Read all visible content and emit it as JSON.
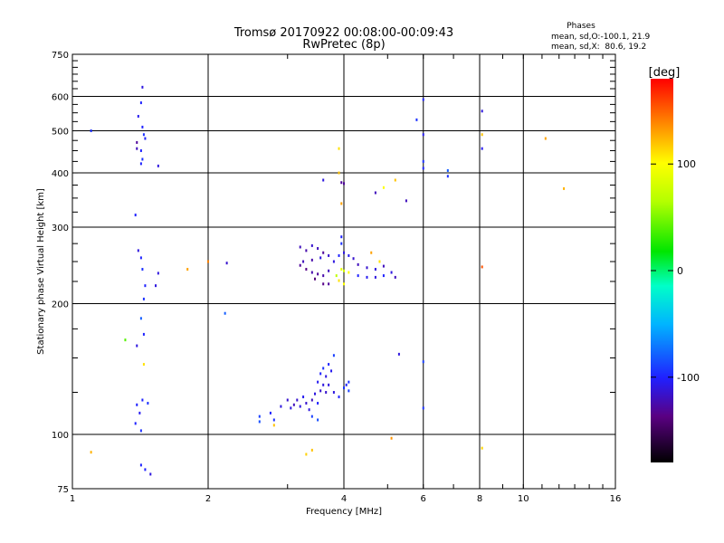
{
  "header": {
    "title_line1": "Tromsø 20170922 00:08:00-00:09:43",
    "title_line2": "RwPretec (8p)",
    "phases_title": "Phases",
    "phases_o": "mean, sd,O:-100.1, 21.9",
    "phases_x": "mean, sd,X:  80.6, 19.2"
  },
  "colorbar": {
    "label": "[deg]",
    "min": -180,
    "max": 180,
    "ticks": [
      100,
      0,
      -100
    ],
    "tick_labels": [
      "100",
      "0",
      "-100"
    ]
  },
  "chart_data": {
    "type": "scatter",
    "xlabel": "Frequency [MHz]",
    "ylabel": "Stationary phase Virtual Height [km]",
    "x_scale": "log",
    "y_scale": "log",
    "xlim": [
      1,
      16
    ],
    "ylim": [
      75,
      750
    ],
    "grid": true,
    "x_ticks": [
      1,
      2,
      4,
      6,
      8,
      10,
      16
    ],
    "x_tick_labels": [
      "1",
      "2",
      "4",
      "6",
      "8",
      "10",
      "16"
    ],
    "y_ticks": [
      75,
      100,
      200,
      300,
      400,
      500,
      600,
      750
    ],
    "y_tick_labels": [
      "75",
      "100",
      "200",
      "300",
      "400",
      "500",
      "600",
      "750"
    ],
    "color_value": "phase [deg]",
    "points": [
      {
        "x": 1.43,
        "y": 630,
        "c": -110
      },
      {
        "x": 1.42,
        "y": 580,
        "c": -100
      },
      {
        "x": 1.4,
        "y": 540,
        "c": -105
      },
      {
        "x": 1.43,
        "y": 510,
        "c": -100
      },
      {
        "x": 1.44,
        "y": 490,
        "c": -95
      },
      {
        "x": 1.45,
        "y": 480,
        "c": -100
      },
      {
        "x": 1.39,
        "y": 470,
        "c": -130
      },
      {
        "x": 1.39,
        "y": 455,
        "c": -120
      },
      {
        "x": 1.42,
        "y": 450,
        "c": -100
      },
      {
        "x": 1.43,
        "y": 430,
        "c": -95
      },
      {
        "x": 1.42,
        "y": 420,
        "c": -100
      },
      {
        "x": 1.55,
        "y": 415,
        "c": -110
      },
      {
        "x": 1.1,
        "y": 500,
        "c": -95
      },
      {
        "x": 1.38,
        "y": 320,
        "c": -100
      },
      {
        "x": 1.4,
        "y": 265,
        "c": -110
      },
      {
        "x": 1.42,
        "y": 255,
        "c": -100
      },
      {
        "x": 1.43,
        "y": 240,
        "c": -95
      },
      {
        "x": 1.55,
        "y": 235,
        "c": -110
      },
      {
        "x": 1.45,
        "y": 220,
        "c": -100
      },
      {
        "x": 1.53,
        "y": 220,
        "c": -110
      },
      {
        "x": 1.44,
        "y": 205,
        "c": -95
      },
      {
        "x": 1.42,
        "y": 185,
        "c": -80
      },
      {
        "x": 1.44,
        "y": 170,
        "c": -100
      },
      {
        "x": 1.31,
        "y": 165,
        "c": 40
      },
      {
        "x": 1.39,
        "y": 160,
        "c": -110
      },
      {
        "x": 1.44,
        "y": 145,
        "c": 110
      },
      {
        "x": 1.43,
        "y": 120,
        "c": -100
      },
      {
        "x": 1.47,
        "y": 118,
        "c": -95
      },
      {
        "x": 1.39,
        "y": 117,
        "c": -100
      },
      {
        "x": 1.41,
        "y": 112,
        "c": -105
      },
      {
        "x": 1.38,
        "y": 106,
        "c": -100
      },
      {
        "x": 1.42,
        "y": 102,
        "c": -95
      },
      {
        "x": 1.42,
        "y": 85,
        "c": -100
      },
      {
        "x": 1.45,
        "y": 83,
        "c": -100
      },
      {
        "x": 1.49,
        "y": 81,
        "c": -110
      },
      {
        "x": 1.1,
        "y": 91,
        "c": 125
      },
      {
        "x": 1.8,
        "y": 240,
        "c": 130
      },
      {
        "x": 2.0,
        "y": 250,
        "c": 140
      },
      {
        "x": 2.2,
        "y": 248,
        "c": -115
      },
      {
        "x": 2.18,
        "y": 190,
        "c": -80
      },
      {
        "x": 3.2,
        "y": 270,
        "c": -120
      },
      {
        "x": 3.3,
        "y": 265,
        "c": -125
      },
      {
        "x": 3.4,
        "y": 272,
        "c": -115
      },
      {
        "x": 3.5,
        "y": 268,
        "c": -120
      },
      {
        "x": 3.6,
        "y": 262,
        "c": -130
      },
      {
        "x": 3.7,
        "y": 258,
        "c": -115
      },
      {
        "x": 3.55,
        "y": 255,
        "c": -110
      },
      {
        "x": 3.4,
        "y": 252,
        "c": -125
      },
      {
        "x": 3.25,
        "y": 250,
        "c": -120
      },
      {
        "x": 3.2,
        "y": 245,
        "c": -130
      },
      {
        "x": 3.3,
        "y": 240,
        "c": -135
      },
      {
        "x": 3.4,
        "y": 236,
        "c": -125
      },
      {
        "x": 3.5,
        "y": 234,
        "c": -130
      },
      {
        "x": 3.6,
        "y": 232,
        "c": -125
      },
      {
        "x": 3.7,
        "y": 238,
        "c": -120
      },
      {
        "x": 3.45,
        "y": 228,
        "c": -140
      },
      {
        "x": 3.6,
        "y": 222,
        "c": -135
      },
      {
        "x": 3.7,
        "y": 222,
        "c": -130
      },
      {
        "x": 3.85,
        "y": 232,
        "c": 70
      },
      {
        "x": 3.95,
        "y": 240,
        "c": 90
      },
      {
        "x": 4.0,
        "y": 238,
        "c": 80
      },
      {
        "x": 4.1,
        "y": 236,
        "c": 100
      },
      {
        "x": 3.9,
        "y": 226,
        "c": 110
      },
      {
        "x": 4.0,
        "y": 222,
        "c": 100
      },
      {
        "x": 3.8,
        "y": 250,
        "c": -110
      },
      {
        "x": 3.9,
        "y": 258,
        "c": -100
      },
      {
        "x": 4.0,
        "y": 262,
        "c": -110
      },
      {
        "x": 4.1,
        "y": 258,
        "c": -105
      },
      {
        "x": 4.2,
        "y": 254,
        "c": -115
      },
      {
        "x": 3.95,
        "y": 285,
        "c": -100
      },
      {
        "x": 3.95,
        "y": 275,
        "c": -95
      },
      {
        "x": 4.3,
        "y": 232,
        "c": -100
      },
      {
        "x": 4.5,
        "y": 230,
        "c": -105
      },
      {
        "x": 4.7,
        "y": 230,
        "c": -110
      },
      {
        "x": 4.9,
        "y": 232,
        "c": -100
      },
      {
        "x": 5.1,
        "y": 236,
        "c": -110
      },
      {
        "x": 5.2,
        "y": 230,
        "c": -120
      },
      {
        "x": 4.3,
        "y": 246,
        "c": -120
      },
      {
        "x": 4.5,
        "y": 242,
        "c": -115
      },
      {
        "x": 4.7,
        "y": 240,
        "c": -110
      },
      {
        "x": 4.9,
        "y": 244,
        "c": -120
      },
      {
        "x": 4.8,
        "y": 250,
        "c": 110
      },
      {
        "x": 4.6,
        "y": 262,
        "c": 130
      },
      {
        "x": 3.9,
        "y": 455,
        "c": 110
      },
      {
        "x": 3.9,
        "y": 400,
        "c": 120
      },
      {
        "x": 3.95,
        "y": 380,
        "c": -130
      },
      {
        "x": 4.0,
        "y": 378,
        "c": -130
      },
      {
        "x": 3.6,
        "y": 385,
        "c": -110
      },
      {
        "x": 3.95,
        "y": 340,
        "c": 130
      },
      {
        "x": 4.7,
        "y": 360,
        "c": -120
      },
      {
        "x": 4.9,
        "y": 370,
        "c": 100
      },
      {
        "x": 5.2,
        "y": 385,
        "c": 120
      },
      {
        "x": 5.5,
        "y": 345,
        "c": -120
      },
      {
        "x": 6.0,
        "y": 590,
        "c": -100
      },
      {
        "x": 5.8,
        "y": 530,
        "c": -95
      },
      {
        "x": 6.0,
        "y": 490,
        "c": -105
      },
      {
        "x": 6.0,
        "y": 425,
        "c": -95
      },
      {
        "x": 6.0,
        "y": 410,
        "c": -100
      },
      {
        "x": 6.8,
        "y": 405,
        "c": -80
      },
      {
        "x": 6.8,
        "y": 393,
        "c": -95
      },
      {
        "x": 8.1,
        "y": 555,
        "c": -110
      },
      {
        "x": 8.1,
        "y": 490,
        "c": 120
      },
      {
        "x": 8.1,
        "y": 455,
        "c": -105
      },
      {
        "x": 11.2,
        "y": 480,
        "c": 130
      },
      {
        "x": 12.3,
        "y": 368,
        "c": 125
      },
      {
        "x": 8.1,
        "y": 243,
        "c": 155
      },
      {
        "x": 5.3,
        "y": 153,
        "c": -110
      },
      {
        "x": 6.0,
        "y": 147,
        "c": -90
      },
      {
        "x": 6.0,
        "y": 115,
        "c": -95
      },
      {
        "x": 5.1,
        "y": 98,
        "c": 135
      },
      {
        "x": 3.4,
        "y": 92,
        "c": 120
      },
      {
        "x": 3.3,
        "y": 90,
        "c": 115
      },
      {
        "x": 8.1,
        "y": 93,
        "c": 115
      },
      {
        "x": 2.6,
        "y": 110,
        "c": -90
      },
      {
        "x": 2.6,
        "y": 107,
        "c": -85
      },
      {
        "x": 2.75,
        "y": 112,
        "c": -100
      },
      {
        "x": 2.8,
        "y": 108,
        "c": -95
      },
      {
        "x": 2.8,
        "y": 105,
        "c": 120
      },
      {
        "x": 2.9,
        "y": 116,
        "c": -110
      },
      {
        "x": 3.0,
        "y": 120,
        "c": -115
      },
      {
        "x": 3.05,
        "y": 115,
        "c": -110
      },
      {
        "x": 3.1,
        "y": 117,
        "c": -120
      },
      {
        "x": 3.15,
        "y": 120,
        "c": -115
      },
      {
        "x": 3.2,
        "y": 116,
        "c": -110
      },
      {
        "x": 3.25,
        "y": 122,
        "c": -105
      },
      {
        "x": 3.3,
        "y": 118,
        "c": -115
      },
      {
        "x": 3.35,
        "y": 114,
        "c": -110
      },
      {
        "x": 3.4,
        "y": 120,
        "c": -120
      },
      {
        "x": 3.45,
        "y": 124,
        "c": -110
      },
      {
        "x": 3.5,
        "y": 118,
        "c": -100
      },
      {
        "x": 3.55,
        "y": 126,
        "c": -115
      },
      {
        "x": 3.6,
        "y": 130,
        "c": -110
      },
      {
        "x": 3.5,
        "y": 132,
        "c": -105
      },
      {
        "x": 3.55,
        "y": 138,
        "c": -100
      },
      {
        "x": 3.6,
        "y": 142,
        "c": -95
      },
      {
        "x": 3.65,
        "y": 136,
        "c": -110
      },
      {
        "x": 3.7,
        "y": 145,
        "c": -100
      },
      {
        "x": 3.75,
        "y": 140,
        "c": -105
      },
      {
        "x": 3.7,
        "y": 130,
        "c": -110
      },
      {
        "x": 3.65,
        "y": 125,
        "c": -115
      },
      {
        "x": 3.4,
        "y": 110,
        "c": -90
      },
      {
        "x": 3.5,
        "y": 108,
        "c": -85
      },
      {
        "x": 3.8,
        "y": 125,
        "c": -110
      },
      {
        "x": 4.0,
        "y": 128,
        "c": -95
      },
      {
        "x": 4.05,
        "y": 130,
        "c": -100
      },
      {
        "x": 4.1,
        "y": 126,
        "c": -90
      },
      {
        "x": 3.9,
        "y": 122,
        "c": -100
      },
      {
        "x": 4.1,
        "y": 132,
        "c": -95
      },
      {
        "x": 3.8,
        "y": 152,
        "c": -90
      }
    ]
  }
}
